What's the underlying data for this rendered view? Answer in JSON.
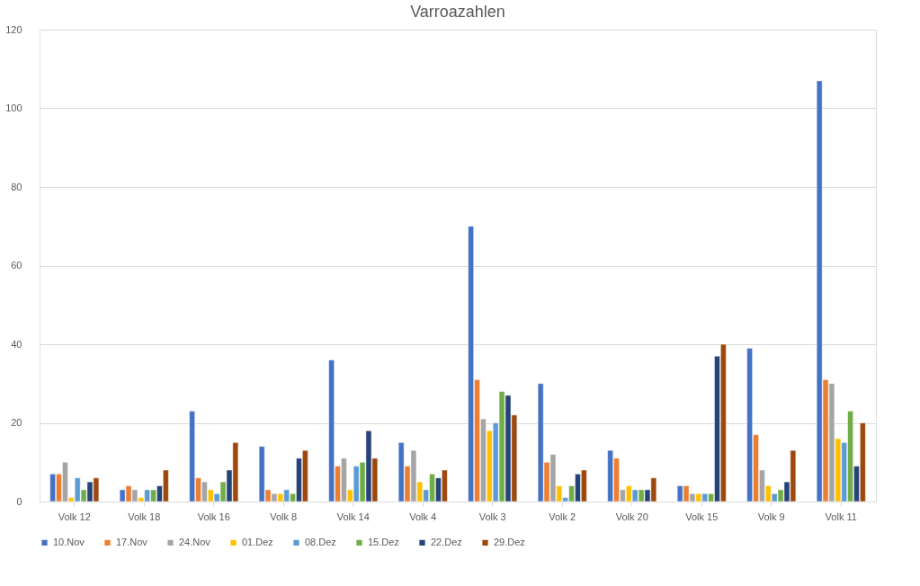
{
  "chart_data": {
    "type": "bar",
    "title": "Varroazahlen",
    "categories": [
      "Volk 12",
      "Volk 18",
      "Volk 16",
      "Volk 8",
      "Volk 14",
      "Volk 4",
      "Volk 3",
      "Volk 2",
      "Volk 20",
      "Volk 15",
      "Volk 9",
      "Volk 11"
    ],
    "series": [
      {
        "name": "10.Nov",
        "color": "#4472c4",
        "values": [
          7,
          3,
          23,
          14,
          36,
          15,
          70,
          30,
          13,
          4,
          39,
          107
        ]
      },
      {
        "name": "17.Nov",
        "color": "#ed7d31",
        "values": [
          7,
          4,
          6,
          3,
          9,
          9,
          31,
          10,
          11,
          4,
          17,
          31
        ]
      },
      {
        "name": "24.Nov",
        "color": "#a5a5a5",
        "values": [
          10,
          3,
          5,
          2,
          11,
          13,
          21,
          12,
          3,
          2,
          8,
          30
        ]
      },
      {
        "name": "01.Dez",
        "color": "#ffc000",
        "values": [
          1,
          1,
          3,
          2,
          3,
          5,
          18,
          4,
          4,
          2,
          4,
          16
        ]
      },
      {
        "name": "08.Dez",
        "color": "#5b9bd5",
        "values": [
          6,
          3,
          2,
          3,
          9,
          3,
          20,
          1,
          3,
          2,
          2,
          15
        ]
      },
      {
        "name": "15.Dez",
        "color": "#70ad47",
        "values": [
          3,
          3,
          5,
          2,
          10,
          7,
          28,
          4,
          3,
          2,
          3,
          23
        ]
      },
      {
        "name": "22.Dez",
        "color": "#264478",
        "values": [
          5,
          4,
          8,
          11,
          18,
          6,
          27,
          7,
          3,
          37,
          5,
          9
        ]
      },
      {
        "name": "29.Dez",
        "color": "#9e480e",
        "values": [
          6,
          8,
          15,
          13,
          11,
          8,
          22,
          8,
          6,
          40,
          13,
          20
        ]
      }
    ],
    "ylim": [
      0,
      120
    ],
    "yticks": [
      0,
      20,
      40,
      60,
      80,
      100,
      120
    ],
    "grid": "y",
    "legend": "bottom"
  }
}
